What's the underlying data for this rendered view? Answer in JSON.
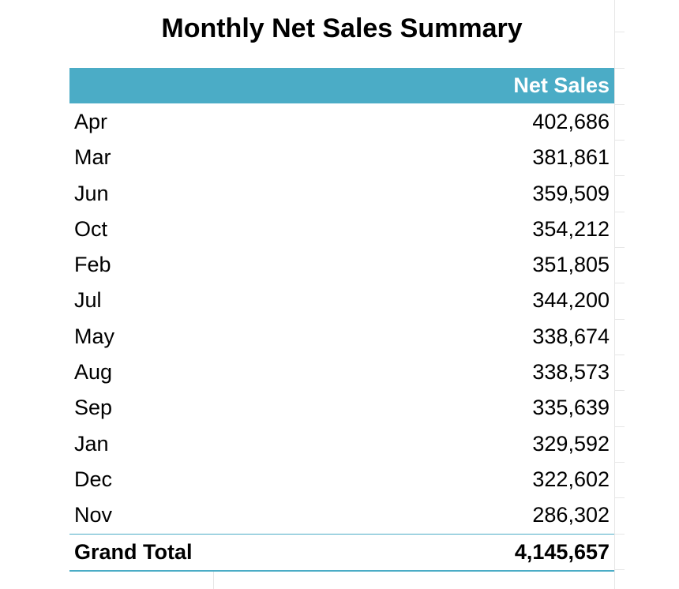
{
  "title": "Monthly Net Sales Summary",
  "table": {
    "header": {
      "net_sales": "Net Sales"
    },
    "rows": [
      {
        "month": "Apr",
        "value": "402,686"
      },
      {
        "month": "Mar",
        "value": "381,861"
      },
      {
        "month": "Jun",
        "value": "359,509"
      },
      {
        "month": "Oct",
        "value": "354,212"
      },
      {
        "month": "Feb",
        "value": "351,805"
      },
      {
        "month": "Jul",
        "value": "344,200"
      },
      {
        "month": "May",
        "value": "338,674"
      },
      {
        "month": "Aug",
        "value": "338,573"
      },
      {
        "month": "Sep",
        "value": "335,639"
      },
      {
        "month": "Jan",
        "value": "329,592"
      },
      {
        "month": "Dec",
        "value": "322,602"
      },
      {
        "month": "Nov",
        "value": "286,302"
      }
    ],
    "total": {
      "label": "Grand Total",
      "value": "4,145,657"
    }
  },
  "colors": {
    "header_band": "#4bacc6",
    "header_text": "#ffffff"
  }
}
